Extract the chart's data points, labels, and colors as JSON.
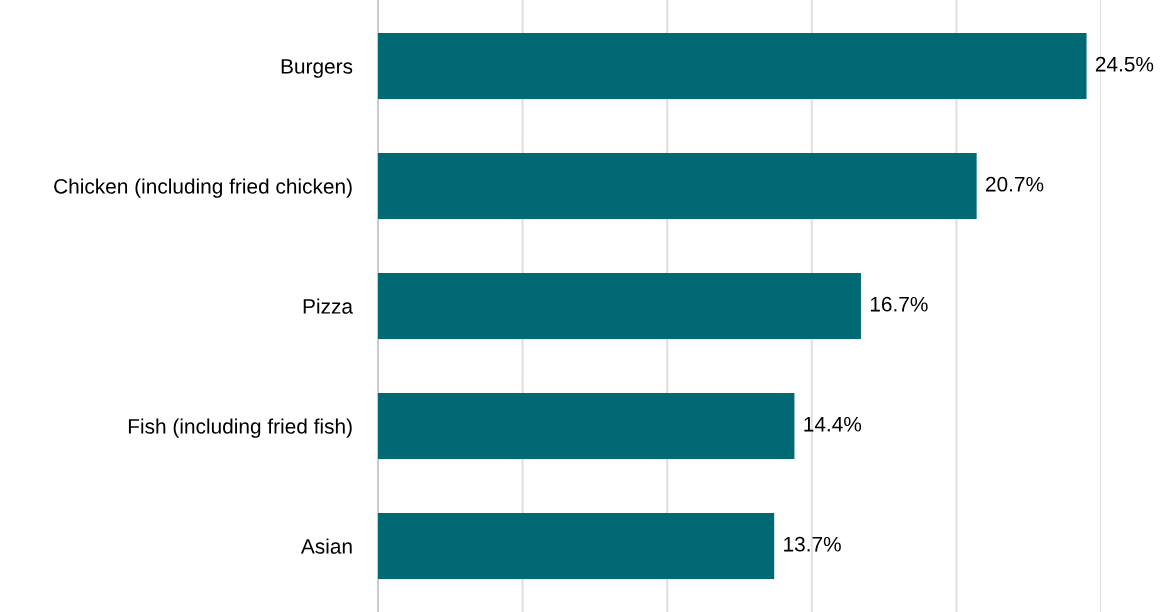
{
  "chart_data": {
    "type": "bar",
    "orientation": "horizontal",
    "categories": [
      "Burgers",
      "Chicken (including fried chicken)",
      "Pizza",
      "Fish (including fried fish)",
      "Asian"
    ],
    "values": [
      24.5,
      20.7,
      16.7,
      14.4,
      13.7
    ],
    "value_labels": [
      "24.5%",
      "20.7%",
      "16.7%",
      "14.4%",
      "13.7%"
    ],
    "color": "#006974",
    "xlim": [
      0,
      25
    ],
    "xticks": [
      {
        "value": 5,
        "label": null
      },
      {
        "value": 10,
        "label": null
      },
      {
        "value": 15,
        "label": null
      },
      {
        "value": 20,
        "label": null
      },
      {
        "value": 25,
        "label": null
      }
    ],
    "tick_labels": "y",
    "grid": "x",
    "legend": false
  }
}
